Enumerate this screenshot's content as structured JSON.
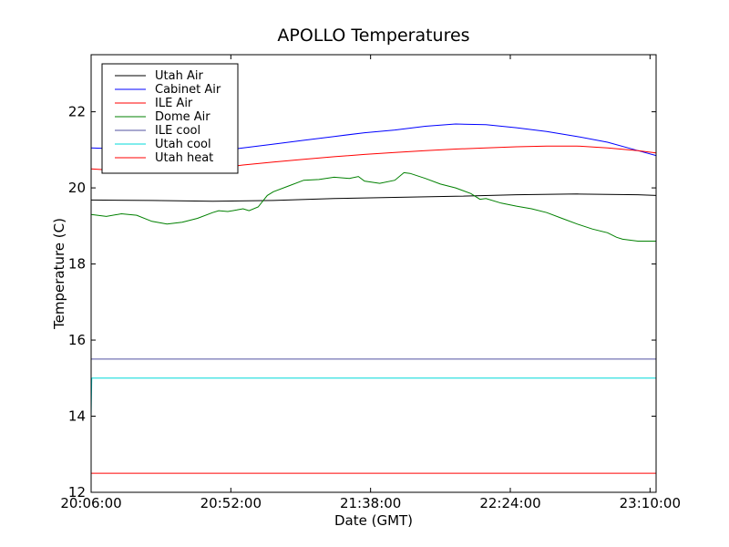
{
  "chart_data": {
    "type": "line",
    "title": "APOLLO Temperatures",
    "xlabel": "Date (GMT)",
    "ylabel": "Temperature (C)",
    "x_unit": "minutes since 20:06:00 GMT",
    "xlim": [
      0,
      186
    ],
    "ylim": [
      12,
      23.5
    ],
    "x_ticks": [
      {
        "value": 0,
        "label": "20:06:00"
      },
      {
        "value": 46,
        "label": "20:52:00"
      },
      {
        "value": 92,
        "label": "21:38:00"
      },
      {
        "value": 138,
        "label": "22:24:00"
      },
      {
        "value": 184,
        "label": "23:10:00"
      }
    ],
    "y_ticks": [
      {
        "value": 12,
        "label": "12"
      },
      {
        "value": 14,
        "label": "14"
      },
      {
        "value": 16,
        "label": "16"
      },
      {
        "value": 18,
        "label": "18"
      },
      {
        "value": 20,
        "label": "20"
      },
      {
        "value": 22,
        "label": "22"
      }
    ],
    "grid": false,
    "legend_position": "top-left",
    "series": [
      {
        "name": "Utah Air",
        "color": "#000000",
        "x": [
          0,
          20,
          40,
          60,
          80,
          100,
          120,
          140,
          160,
          180,
          186
        ],
        "y": [
          19.68,
          19.67,
          19.65,
          19.67,
          19.72,
          19.75,
          19.78,
          19.82,
          19.84,
          19.82,
          19.8
        ]
      },
      {
        "name": "Cabinet Air",
        "color": "#0000ff",
        "x": [
          0,
          10,
          20,
          30,
          40,
          50,
          60,
          70,
          80,
          90,
          100,
          110,
          120,
          130,
          140,
          150,
          160,
          170,
          180,
          186
        ],
        "y": [
          21.05,
          21.02,
          20.95,
          20.9,
          20.95,
          21.05,
          21.15,
          21.25,
          21.35,
          21.45,
          21.52,
          21.62,
          21.68,
          21.66,
          21.58,
          21.48,
          21.35,
          21.2,
          20.98,
          20.85
        ]
      },
      {
        "name": "ILE Air",
        "color": "#ff0000",
        "x": [
          0,
          10,
          20,
          30,
          40,
          50,
          60,
          70,
          80,
          90,
          100,
          110,
          120,
          130,
          140,
          150,
          160,
          170,
          180,
          186
        ],
        "y": [
          20.5,
          20.45,
          20.4,
          20.45,
          20.5,
          20.6,
          20.68,
          20.75,
          20.82,
          20.88,
          20.93,
          20.98,
          21.02,
          21.05,
          21.08,
          21.1,
          21.1,
          21.05,
          20.98,
          20.92
        ]
      },
      {
        "name": "Dome Air",
        "color": "#008000",
        "x": [
          0,
          5,
          10,
          15,
          20,
          25,
          30,
          35,
          40,
          42,
          45,
          48,
          50,
          52,
          55,
          58,
          60,
          65,
          70,
          75,
          80,
          85,
          88,
          90,
          95,
          100,
          103,
          105,
          110,
          115,
          120,
          125,
          128,
          130,
          135,
          140,
          145,
          150,
          155,
          160,
          165,
          170,
          173,
          175,
          180,
          186
        ],
        "y": [
          19.3,
          19.25,
          19.32,
          19.28,
          19.12,
          19.05,
          19.1,
          19.2,
          19.35,
          19.4,
          19.38,
          19.42,
          19.45,
          19.4,
          19.5,
          19.8,
          19.9,
          20.05,
          20.2,
          20.22,
          20.28,
          20.25,
          20.3,
          20.18,
          20.12,
          20.2,
          20.4,
          20.38,
          20.25,
          20.1,
          20.0,
          19.85,
          19.7,
          19.72,
          19.6,
          19.52,
          19.45,
          19.35,
          19.2,
          19.05,
          18.92,
          18.82,
          18.7,
          18.65,
          18.6,
          18.6
        ]
      },
      {
        "name": "ILE cool",
        "color": "#5050a0",
        "x": [
          0,
          186
        ],
        "y": [
          15.5,
          15.5
        ]
      },
      {
        "name": "Utah cool",
        "color": "#00d8d8",
        "x": [
          0,
          0.2,
          186
        ],
        "y": [
          14.0,
          15.0,
          15.0
        ]
      },
      {
        "name": "Utah heat",
        "color": "#ff0000",
        "x": [
          0,
          186
        ],
        "y": [
          12.5,
          12.5
        ]
      }
    ]
  }
}
